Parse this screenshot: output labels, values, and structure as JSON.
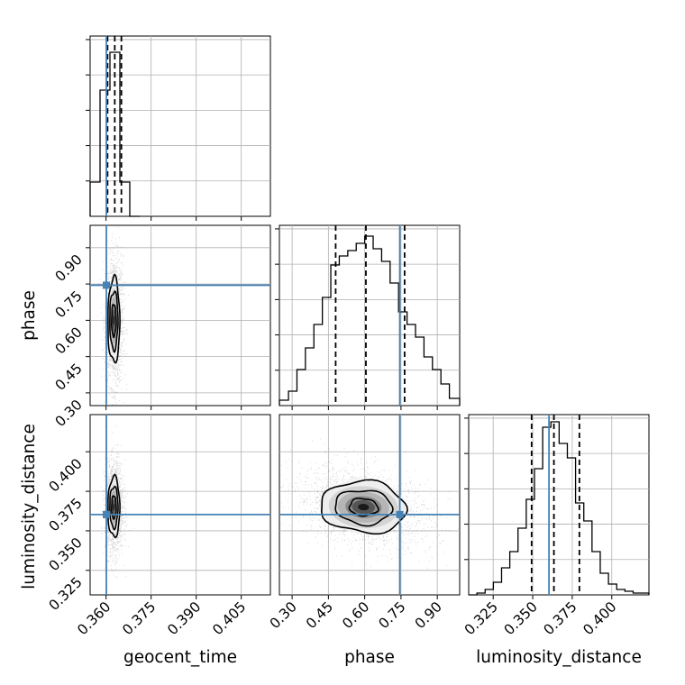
{
  "chart_data": {
    "type": "corner",
    "params": [
      "geocent_time",
      "phase",
      "luminosity_distance"
    ],
    "truths": {
      "geocent_time": 0.3601,
      "phase": 0.745,
      "luminosity_distance": 0.3603
    },
    "truth_color": "#4682b4",
    "axes": {
      "geocent_time": {
        "range": [
          0.3547,
          0.4147
        ],
        "ticks": [
          "0.360",
          "0.375",
          "0.390",
          "0.405"
        ],
        "tick_values": [
          0.36,
          0.375,
          0.39,
          0.405
        ]
      },
      "phase": {
        "range": [
          0.2475,
          0.9925
        ],
        "ticks": [
          "0.30",
          "0.45",
          "0.60",
          "0.75",
          "0.90"
        ],
        "tick_values": [
          0.3,
          0.45,
          0.6,
          0.75,
          0.9
        ]
      },
      "luminosity_distance": {
        "range": [
          0.3095,
          0.4235
        ],
        "ticks": [
          "0.325",
          "0.350",
          "0.375",
          "0.400"
        ],
        "tick_values": [
          0.325,
          0.35,
          0.375,
          0.4
        ]
      }
    },
    "histograms": [
      {
        "param": "geocent_time",
        "bin_edges": [
          0.3547,
          0.358,
          0.3613,
          0.3646,
          0.3679,
          0.3712
        ],
        "counts": [
          0.19,
          0.7,
          0.91,
          0.19,
          0
        ],
        "quantile_lines": [
          0.3605,
          0.3629,
          0.3651
        ]
      },
      {
        "param": "phase",
        "bin_edges": [
          0.2475,
          0.285,
          0.32,
          0.355,
          0.39,
          0.425,
          0.46,
          0.495,
          0.53,
          0.565,
          0.6,
          0.635,
          0.67,
          0.705,
          0.74,
          0.775,
          0.81,
          0.845,
          0.88,
          0.915,
          0.95,
          0.9925
        ],
        "counts": [
          0.03,
          0.08,
          0.2,
          0.32,
          0.45,
          0.6,
          0.78,
          0.83,
          0.86,
          0.9,
          0.94,
          0.87,
          0.8,
          0.68,
          0.52,
          0.45,
          0.38,
          0.27,
          0.2,
          0.12,
          0.04
        ],
        "quantile_lines": [
          0.48,
          0.605,
          0.765
        ]
      },
      {
        "param": "luminosity_distance",
        "bin_edges": [
          0.3095,
          0.3147,
          0.3199,
          0.3251,
          0.3303,
          0.3355,
          0.3407,
          0.3459,
          0.3511,
          0.3563,
          0.3615,
          0.3667,
          0.3719,
          0.3771,
          0.3823,
          0.3875,
          0.3927,
          0.3979,
          0.4031,
          0.4083,
          0.4135,
          0.4235
        ],
        "counts": [
          0.0,
          0.01,
          0.03,
          0.07,
          0.15,
          0.24,
          0.37,
          0.53,
          0.7,
          0.93,
          0.96,
          0.84,
          0.76,
          0.51,
          0.41,
          0.24,
          0.12,
          0.06,
          0.03,
          0.02,
          0.01
        ],
        "quantile_lines": [
          0.3493,
          0.3634,
          0.3795
        ]
      }
    ],
    "joint": [
      {
        "x": "geocent_time",
        "y": "phase",
        "center": [
          0.3626,
          0.6
        ],
        "sigma": [
          0.0013,
          0.115
        ],
        "rho": 0.0,
        "contour_scales": [
          0.55,
          1.0,
          1.45
        ]
      },
      {
        "x": "geocent_time",
        "y": "luminosity_distance",
        "center": [
          0.3626,
          0.365
        ],
        "sigma": [
          0.0013,
          0.0125
        ],
        "rho": 0.0,
        "contour_scales": [
          0.55,
          1.0,
          1.45
        ]
      },
      {
        "x": "phase",
        "y": "luminosity_distance",
        "center": [
          0.595,
          0.365
        ],
        "sigma": [
          0.125,
          0.0115
        ],
        "rho": -0.35,
        "contour_scales": [
          0.45,
          0.9,
          1.35
        ]
      }
    ]
  }
}
